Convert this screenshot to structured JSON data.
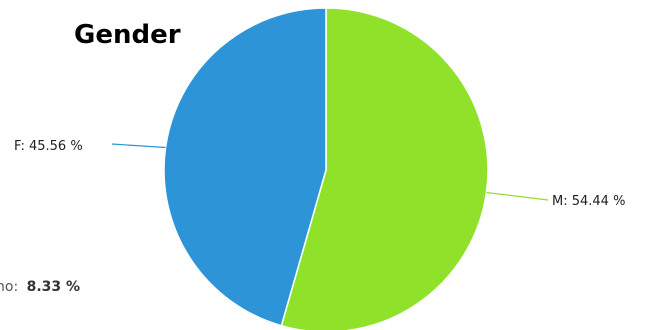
{
  "chart_data": {
    "type": "pie",
    "title": "Gender",
    "slices": [
      {
        "label": "F",
        "value": 45.56,
        "display": "F: 45.56 %",
        "color": "#2d94d8"
      },
      {
        "label": "M",
        "value": 54.44,
        "display": "M: 54.44 %",
        "color": "#8fe12a"
      }
    ],
    "start_angle_deg": 0,
    "direction": "clockwise"
  },
  "cropped_annotation": {
    "prefix": "no:",
    "value": "8.33 %"
  }
}
